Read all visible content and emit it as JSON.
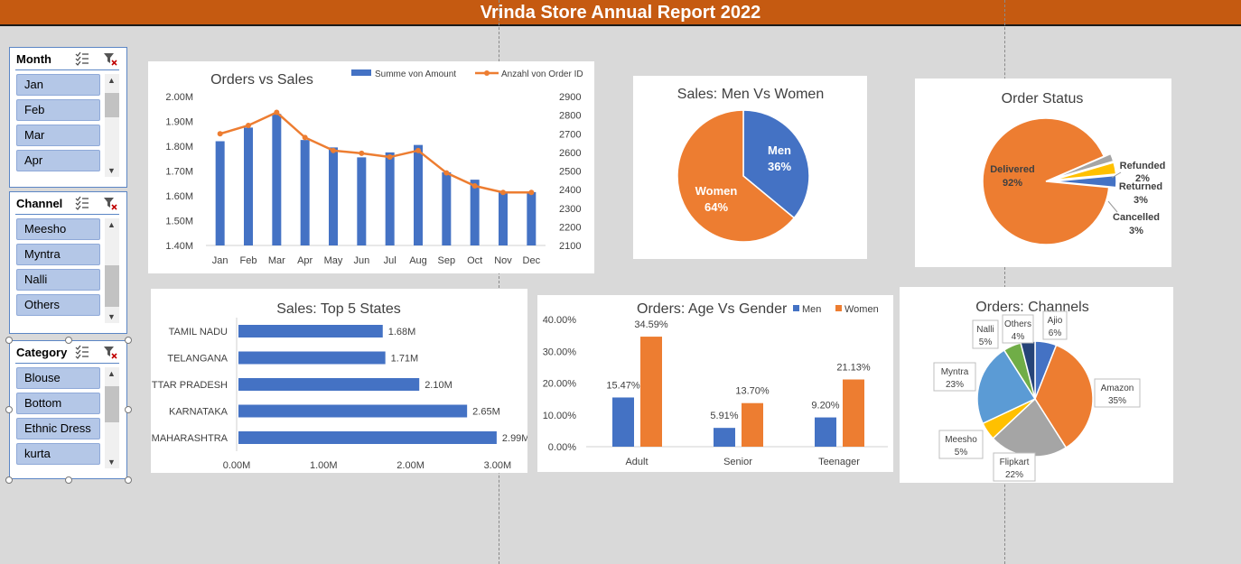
{
  "title": "Vrinda Store Annual Report 2022",
  "colors": {
    "header": "#c55a11",
    "blue": "#4472c4",
    "orange": "#ed7d31",
    "gray": "#a5a5a5",
    "yellow": "#ffc000",
    "lightblue": "#5b9bd5",
    "green": "#70ad47",
    "navy": "#264478"
  },
  "slicers": [
    {
      "name": "Month",
      "items": [
        "Jan",
        "Feb",
        "Mar",
        "Apr"
      ]
    },
    {
      "name": "Channel",
      "items": [
        "Meesho",
        "Myntra",
        "Nalli",
        "Others"
      ]
    },
    {
      "name": "Category",
      "items": [
        "Blouse",
        "Bottom",
        "Ethnic Dress",
        "kurta"
      ]
    }
  ],
  "slicer_icons": {
    "multiselect": "multi-select-icon",
    "clear": "clear-filter-icon"
  },
  "chart_data": [
    {
      "type": "bar",
      "title": "Orders vs Sales",
      "categories": [
        "Jan",
        "Feb",
        "Mar",
        "Apr",
        "May",
        "Jun",
        "Jul",
        "Aug",
        "Sep",
        "Oct",
        "Nov",
        "Dec"
      ],
      "series": [
        {
          "name": "Summe von Amount",
          "type": "bar",
          "axis": "left",
          "values": [
            1.82,
            1.875,
            1.93,
            1.825,
            1.795,
            1.755,
            1.775,
            1.805,
            1.695,
            1.665,
            1.615,
            1.615
          ]
        },
        {
          "name": "Anzahl von Order ID",
          "type": "line",
          "axis": "right",
          "values": [
            2700,
            2745,
            2815,
            2680,
            2610,
            2595,
            2575,
            2610,
            2490,
            2420,
            2385,
            2385
          ]
        }
      ],
      "y_left": {
        "ticks": [
          "1.40M",
          "1.50M",
          "1.60M",
          "1.70M",
          "1.80M",
          "1.90M",
          "2.00M"
        ],
        "min": 1.4,
        "max": 2.0
      },
      "y_right": {
        "ticks": [
          "2100",
          "2200",
          "2300",
          "2400",
          "2500",
          "2600",
          "2700",
          "2800",
          "2900"
        ],
        "min": 2100,
        "max": 2900
      },
      "legend": "top-right"
    },
    {
      "type": "pie",
      "title": "Sales: Men Vs Women",
      "labels": [
        "Men",
        "Women"
      ],
      "values": [
        36,
        64
      ],
      "value_labels": [
        "36%",
        "64%"
      ]
    },
    {
      "type": "pie",
      "title": "Order Status",
      "labels": [
        "Delivered",
        "Refunded",
        "Returned",
        "Cancelled"
      ],
      "values": [
        92,
        2,
        3,
        3
      ],
      "value_labels": [
        "92%",
        "2%",
        "3%",
        "3%"
      ]
    },
    {
      "type": "bar",
      "orientation": "horizontal",
      "title": "Sales: Top 5 States",
      "categories": [
        "TAMIL NADU",
        "TELANGANA",
        "UTTAR PRADESH",
        "KARNATAKA",
        "MAHARASHTRA"
      ],
      "values": [
        1.68,
        1.71,
        2.1,
        2.65,
        2.99
      ],
      "value_labels": [
        "1.68M",
        "1.71M",
        "2.10M",
        "2.65M",
        "2.99M"
      ],
      "x_ticks": [
        "0.00M",
        "1.00M",
        "2.00M",
        "3.00M"
      ],
      "xlim": [
        0,
        3.5
      ]
    },
    {
      "type": "bar",
      "title": "Orders: Age Vs Gender",
      "categories": [
        "Adult",
        "Senior",
        "Teenager"
      ],
      "series": [
        {
          "name": "Men",
          "values": [
            15.47,
            5.91,
            9.2
          ],
          "value_labels": [
            "15.47%",
            "5.91%",
            "9.20%"
          ]
        },
        {
          "name": "Women",
          "values": [
            34.59,
            13.7,
            21.13
          ],
          "value_labels": [
            "34.59%",
            "13.70%",
            "21.13%"
          ]
        }
      ],
      "y_ticks": [
        "0.00%",
        "10.00%",
        "20.00%",
        "30.00%",
        "40.00%"
      ],
      "ylim": [
        0,
        40
      ],
      "legend": "top-right"
    },
    {
      "type": "pie",
      "title": "Orders: Channels",
      "labels": [
        "Ajio",
        "Amazon",
        "Flipkart",
        "Meesho",
        "Myntra",
        "Nalli",
        "Others"
      ],
      "values": [
        6,
        35,
        22,
        5,
        23,
        5,
        4
      ],
      "value_labels": [
        "6%",
        "35%",
        "22%",
        "5%",
        "23%",
        "5%",
        "4%"
      ]
    }
  ]
}
